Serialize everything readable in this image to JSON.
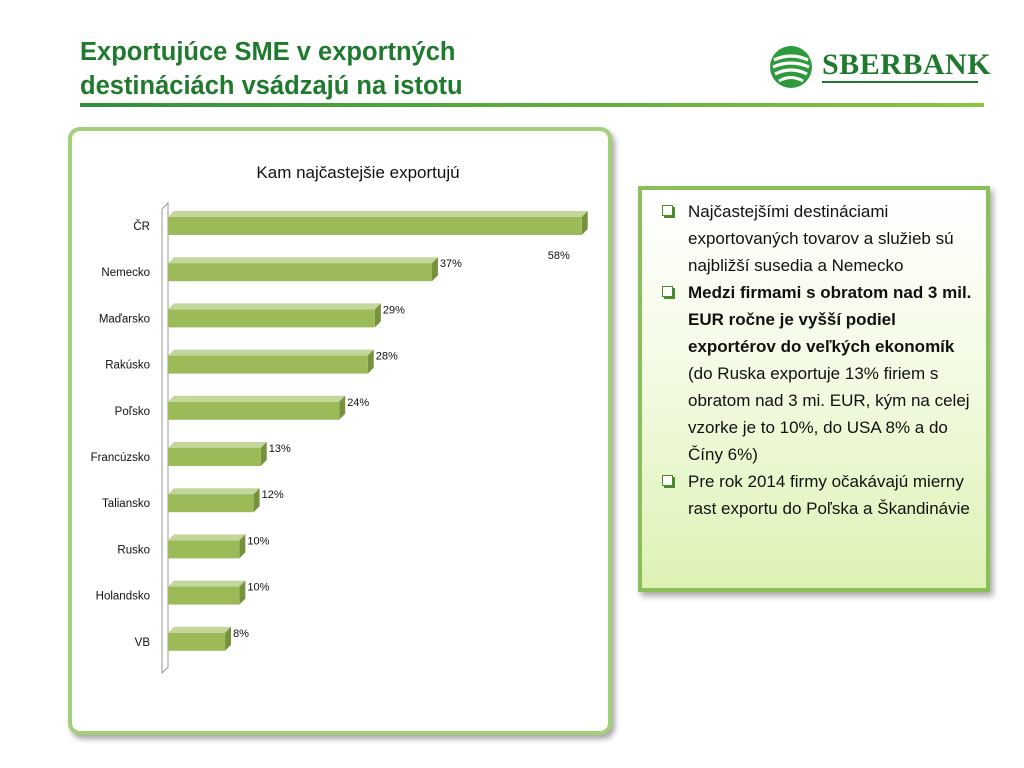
{
  "slide": {
    "title_line1": "Exportujúce SME v exportných",
    "title_line2": "destináciách vsádzajú na istotu"
  },
  "logo": {
    "text": "SBERBANK",
    "icon": "sberbank-logo-icon",
    "brand_color": "#1f7a2e"
  },
  "colors": {
    "bar_front": "#9bbb59",
    "bar_top": "#c3d69b",
    "bar_side": "#76923c",
    "accent_green": "#1f7a2e"
  },
  "chart_data": {
    "type": "bar",
    "orientation": "horizontal",
    "title": "Kam najčastejšie exportujú",
    "categories": [
      "ČR",
      "Nemecko",
      "Maďarsko",
      "Rakúsko",
      "Poľsko",
      "Francúzsko",
      "Taliansko",
      "Rusko",
      "Holandsko",
      "VB"
    ],
    "values": [
      58,
      37,
      29,
      28,
      24,
      13,
      12,
      10,
      10,
      8
    ],
    "data_labels": [
      "58%",
      "37%",
      "29%",
      "28%",
      "24%",
      "13%",
      "12%",
      "10%",
      "10%",
      "8%"
    ],
    "unit": "%",
    "xlim": [
      0,
      60
    ],
    "grid": false,
    "legend": "none",
    "style": "3d"
  },
  "bullets": [
    {
      "icon": "checkbox-bullet-icon",
      "text": "Najčastejšími destináciami exportovaných tovarov a služieb sú najbližší susedia a Nemecko"
    },
    {
      "icon": "checkbox-bullet-icon",
      "text_bold": "Medzi firmami s obratom nad 3 mil. EUR ročne je vyšší podiel exportérov do veľkých ekonomík",
      "text": " (do Ruska exportuje 13% firiem s obratom nad 3 mi. EUR, kým na celej vzorke je to 10%, do USA 8% a do Číny 6%)"
    },
    {
      "icon": "checkbox-bullet-icon",
      "text": "Pre rok 2014 firmy očakávajú mierny rast exportu do Poľska a Škandinávie"
    }
  ]
}
